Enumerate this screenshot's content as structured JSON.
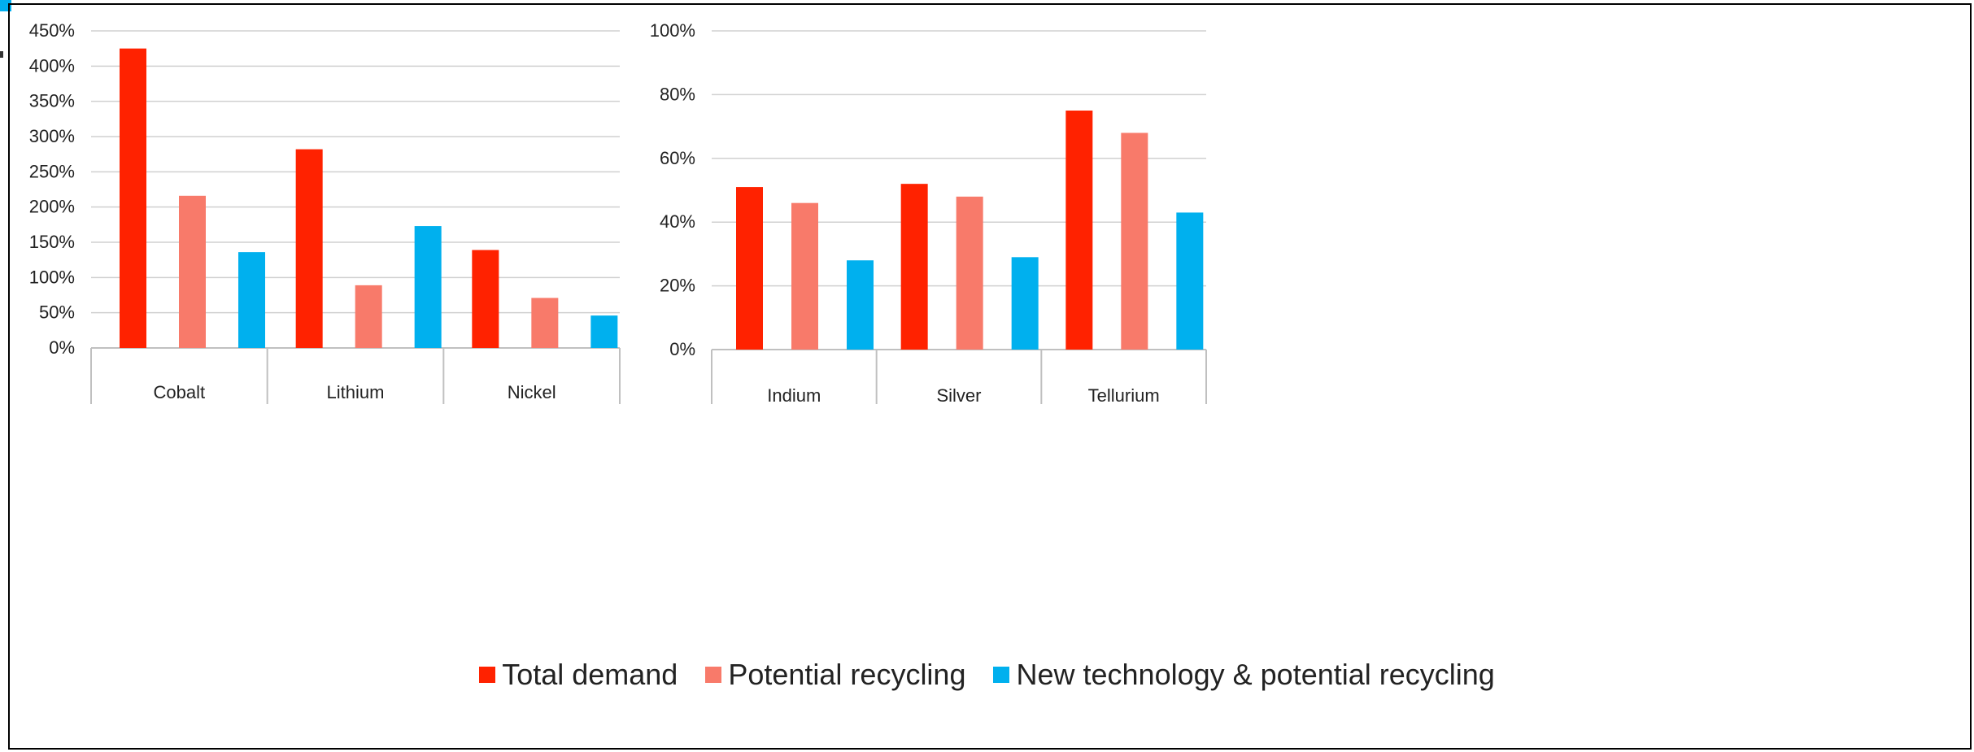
{
  "colors": {
    "accent": "#00AEEF",
    "total_demand": "#FF2200",
    "potential_recycling": "#F87A6A",
    "new_technology": "#00B0EE",
    "gridline": "#D0D0D0",
    "axis": "#C0C0C0"
  },
  "legend": [
    {
      "label": "Total demand",
      "color": "#FF2200"
    },
    {
      "label": "Potential recycling",
      "color": "#F87A6A"
    },
    {
      "label": "New technology & potential recycling",
      "color": "#00B0EE"
    }
  ],
  "chart_data": [
    {
      "type": "bar",
      "categories": [
        "Cobalt",
        "Lithium",
        "Nickel"
      ],
      "ylim": [
        0,
        450
      ],
      "yticks": [
        0,
        50,
        100,
        150,
        200,
        250,
        300,
        350,
        400,
        450
      ],
      "ytick_labels": [
        "0%",
        "50%",
        "100%",
        "150%",
        "200%",
        "250%",
        "300%",
        "350%",
        "400%",
        "450%"
      ],
      "grid": true,
      "series": [
        {
          "name": "Total demand",
          "values": [
            425,
            282,
            139
          ]
        },
        {
          "name": "Potential recycling",
          "values": [
            216,
            89,
            71
          ]
        },
        {
          "name": "New technology & potential recycling",
          "values": [
            136,
            173,
            46
          ]
        }
      ]
    },
    {
      "type": "bar",
      "categories": [
        "Indium",
        "Silver",
        "Tellurium"
      ],
      "ylim": [
        0,
        100
      ],
      "yticks": [
        0,
        20,
        40,
        60,
        80,
        100
      ],
      "ytick_labels": [
        "0%",
        "20%",
        "40%",
        "60%",
        "80%",
        "100%"
      ],
      "grid": true,
      "series": [
        {
          "name": "Total demand",
          "values": [
            51,
            52,
            75
          ]
        },
        {
          "name": "Potential recycling",
          "values": [
            46,
            48,
            68
          ]
        },
        {
          "name": "New technology & potential recycling",
          "values": [
            28,
            29,
            43
          ]
        }
      ]
    }
  ]
}
